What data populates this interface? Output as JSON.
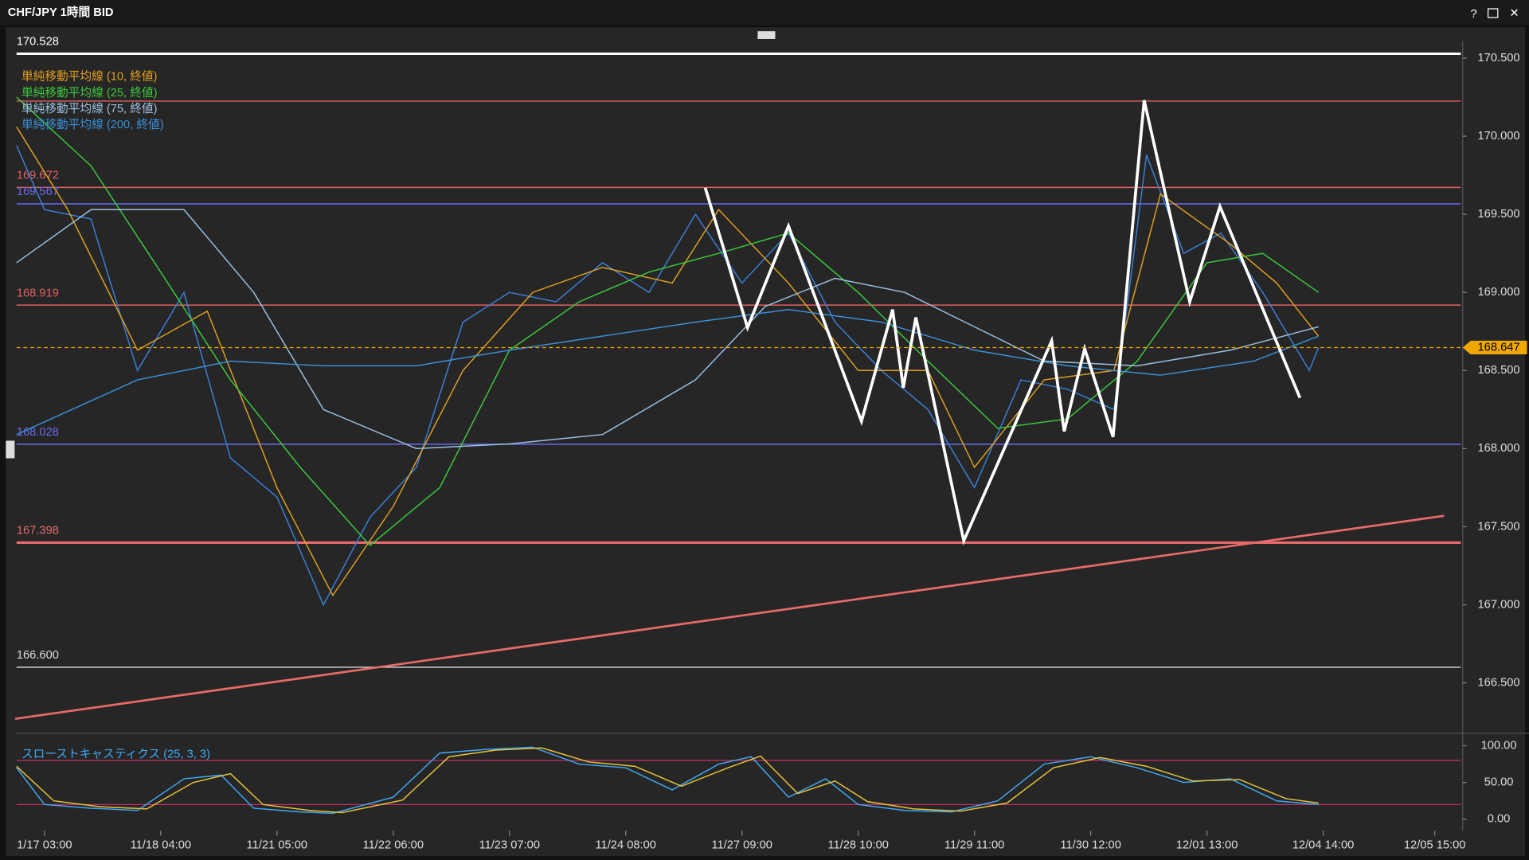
{
  "window": {
    "title": "CHF/JPY 1時間 BID"
  },
  "chart_data": [
    {
      "type": "line",
      "xlim": [
        -6,
        305
      ],
      "ylim": [
        166.19,
        170.61
      ],
      "yticks": [
        {
          "value": 170.5,
          "label": "170.500"
        },
        {
          "value": 170,
          "label": "170.000"
        },
        {
          "value": 169.5,
          "label": "169.500"
        },
        {
          "value": 169,
          "label": "169.000"
        },
        {
          "value": 168.5,
          "label": "168.500"
        },
        {
          "value": 168,
          "label": "168.000"
        },
        {
          "value": 167.5,
          "label": "167.500"
        },
        {
          "value": 167,
          "label": "167.000"
        },
        {
          "value": 166.5,
          "label": "166.500"
        }
      ],
      "levels": [
        {
          "value": 170.528,
          "label": "170.528",
          "color": "#ffffff"
        },
        {
          "value": 170.225,
          "color": "#e06060"
        },
        {
          "value": 169.672,
          "label": "169.672",
          "color": "#e06060"
        },
        {
          "value": 169.567,
          "label": "169.567",
          "color": "#6a6af0"
        },
        {
          "value": 168.919,
          "label": "168.919",
          "color": "#e06060"
        },
        {
          "value": 168.028,
          "label": "168.028",
          "color": "#6a6af0"
        },
        {
          "value": 167.398,
          "label": "167.398",
          "color": "#e86a6a"
        },
        {
          "value": 166.6,
          "label": "166.600",
          "color": "#dddddd"
        }
      ],
      "current_price": {
        "value": 168.647,
        "color": "#f0a800"
      },
      "trendline": {
        "x": [
          -6.3,
          301
        ],
        "values": [
          166.27,
          167.57
        ],
        "color": "#e86a6a"
      },
      "series": [
        {
          "color": "#3a7fd8",
          "x": [
            -6,
            0,
            10,
            20,
            30,
            40,
            50,
            60,
            70,
            80,
            90,
            100,
            110,
            120,
            130,
            140,
            150,
            160,
            170,
            180,
            190,
            200,
            210,
            220,
            230,
            237,
            245,
            253,
            262,
            272,
            274
          ],
          "values": [
            169.94,
            169.53,
            169.47,
            168.5,
            169.0,
            167.94,
            167.69,
            167.0,
            167.56,
            167.88,
            168.81,
            169.0,
            168.94,
            169.19,
            169.0,
            169.5,
            169.06,
            169.38,
            168.81,
            168.5,
            168.25,
            167.75,
            168.44,
            168.38,
            168.25,
            169.88,
            169.25,
            169.38,
            169.0,
            168.5,
            168.647
          ]
        },
        {
          "name": "単純移動平均線 (10, 終値)",
          "color": "#e0a020",
          "x": [
            -6,
            5,
            20,
            35,
            50,
            62,
            75,
            90,
            105,
            120,
            135,
            145,
            160,
            175,
            190,
            200,
            215,
            230,
            240,
            255,
            265,
            274
          ],
          "values": [
            170.06,
            169.53,
            168.63,
            168.88,
            167.75,
            167.06,
            167.63,
            168.5,
            169.0,
            169.16,
            169.06,
            169.53,
            169.06,
            168.5,
            168.5,
            167.88,
            168.44,
            168.5,
            169.63,
            169.31,
            169.06,
            168.72
          ]
        },
        {
          "name": "単純移動平均線 (25, 終値)",
          "color": "#3cc83c",
          "x": [
            -6,
            10,
            25,
            40,
            55,
            70,
            85,
            100,
            115,
            130,
            145,
            160,
            175,
            190,
            205,
            220,
            235,
            250,
            262,
            274
          ],
          "values": [
            170.25,
            169.81,
            169.13,
            168.44,
            167.88,
            167.38,
            167.75,
            168.63,
            168.94,
            169.13,
            169.25,
            169.38,
            169.0,
            168.56,
            168.13,
            168.19,
            168.56,
            169.19,
            169.25,
            169.0
          ]
        },
        {
          "name": "単純移動平均線 (75, 終値)",
          "color": "#9cc0e0",
          "x": [
            -6,
            10,
            30,
            45,
            60,
            80,
            100,
            120,
            140,
            155,
            170,
            185,
            200,
            215,
            235,
            255,
            274
          ],
          "values": [
            169.19,
            169.53,
            169.53,
            169.0,
            168.25,
            168.0,
            168.03,
            168.09,
            168.44,
            168.91,
            169.09,
            169.0,
            168.78,
            168.56,
            168.53,
            168.63,
            168.78
          ]
        },
        {
          "name": "単純移動平均線 (200, 終値)",
          "color": "#3a8fd8",
          "x": [
            -6,
            20,
            40,
            60,
            80,
            100,
            120,
            140,
            160,
            180,
            200,
            220,
            240,
            260,
            274
          ],
          "values": [
            168.09,
            168.44,
            168.56,
            168.53,
            168.53,
            168.63,
            168.72,
            168.81,
            168.89,
            168.81,
            168.63,
            168.53,
            168.47,
            168.56,
            168.72
          ]
        },
        {
          "color": "#ffffff",
          "x": [
            142.1,
            151.2,
            160,
            175.7,
            182.4,
            184.7,
            187.4,
            197.7,
            216.6,
            219.3,
            223.7,
            229.8,
            236.5,
            246.3,
            252.8,
            270
          ],
          "values": [
            169.67,
            168.775,
            169.425,
            168.175,
            168.89,
            168.39,
            168.84,
            167.41,
            168.69,
            168.11,
            168.64,
            168.075,
            170.23,
            168.94,
            169.55,
            168.325
          ]
        }
      ]
    },
    {
      "type": "line",
      "title": "スローストキャスティクス (25, 3, 3)",
      "xlim": [
        -6,
        305
      ],
      "ylim": [
        -13,
        113
      ],
      "xticks": [
        {
          "value": 0,
          "label": "1/17 03:00"
        },
        {
          "value": 25,
          "label": "11/18 04:00"
        },
        {
          "value": 50,
          "label": "11/21 05:00"
        },
        {
          "value": 75,
          "label": "11/22 06:00"
        },
        {
          "value": 100,
          "label": "11/23 07:00"
        },
        {
          "value": 125,
          "label": "11/24 08:00"
        },
        {
          "value": 150,
          "label": "11/27 09:00"
        },
        {
          "value": 175,
          "label": "11/28 10:00"
        },
        {
          "value": 200,
          "label": "11/29 11:00"
        },
        {
          "value": 225,
          "label": "11/30 12:00"
        },
        {
          "value": 250,
          "label": "12/01 13:00"
        },
        {
          "value": 275,
          "label": "12/04 14:00"
        },
        {
          "value": 299,
          "label": "12/05 15:00"
        }
      ],
      "yticks": [
        {
          "value": 100,
          "label": "100.00"
        },
        {
          "value": 50,
          "label": "50.00"
        },
        {
          "value": 0,
          "label": "0.00"
        }
      ],
      "hlines": [
        {
          "value": 80,
          "color": "#c0306a"
        },
        {
          "value": 20,
          "color": "#c0306a"
        }
      ],
      "series": [
        {
          "color": "#3fa9f5",
          "x": [
            -6,
            0,
            10,
            20,
            30,
            38,
            45,
            55,
            62,
            75,
            85,
            95,
            105,
            115,
            125,
            135,
            145,
            152,
            160,
            168,
            175,
            185,
            195,
            205,
            215,
            225,
            235,
            245,
            255,
            265,
            274
          ],
          "values": [
            70,
            20,
            15,
            12,
            55,
            60,
            15,
            10,
            8,
            30,
            90,
            95,
            98,
            75,
            70,
            40,
            75,
            85,
            30,
            55,
            20,
            12,
            10,
            25,
            75,
            85,
            70,
            50,
            55,
            25,
            20
          ]
        },
        {
          "color": "#e8c43a",
          "x": [
            -6,
            2,
            12,
            22,
            32,
            40,
            47,
            57,
            64,
            77,
            87,
            97,
            107,
            117,
            127,
            137,
            147,
            154,
            162,
            170,
            177,
            187,
            197,
            207,
            217,
            227,
            237,
            247,
            257,
            267,
            274
          ],
          "values": [
            72,
            25,
            17,
            14,
            50,
            62,
            20,
            12,
            9,
            26,
            85,
            94,
            97,
            78,
            72,
            45,
            70,
            86,
            35,
            52,
            24,
            14,
            11,
            22,
            70,
            84,
            72,
            52,
            54,
            28,
            22
          ]
        }
      ]
    }
  ]
}
